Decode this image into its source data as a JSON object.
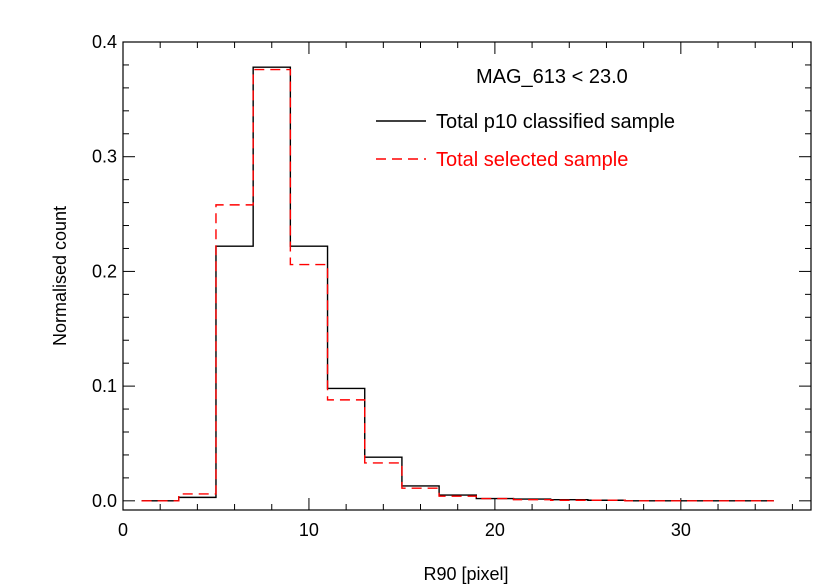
{
  "chart_data": {
    "type": "step-histogram",
    "title": "MAG_613 < 23.0",
    "xlabel": "R90 [pixel]",
    "ylabel": "Normalised count",
    "xlim": [
      0,
      37
    ],
    "ylim": [
      -0.008,
      0.4
    ],
    "xticks": [
      0,
      10,
      20,
      30
    ],
    "yticks": [
      0.0,
      0.1,
      0.2,
      0.3,
      0.4
    ],
    "ytick_labels": [
      "0.0",
      "0.1",
      "0.2",
      "0.3",
      "0.4"
    ],
    "bin_edges": [
      1,
      3,
      5,
      7,
      9,
      11,
      13,
      15,
      17,
      19,
      21,
      23,
      25,
      27,
      29,
      31,
      33,
      35
    ],
    "series": [
      {
        "name": "Total p10 classified sample",
        "style": "solid",
        "color": "#000000",
        "values": [
          0.0,
          0.003,
          0.222,
          0.378,
          0.222,
          0.098,
          0.038,
          0.013,
          0.005,
          0.002,
          0.0015,
          0.001,
          0.0005,
          0.0,
          0.0,
          0.0,
          0.0
        ]
      },
      {
        "name": "Total selected sample",
        "style": "dashed",
        "color": "#ff0000",
        "values": [
          0.0,
          0.006,
          0.258,
          0.376,
          0.206,
          0.088,
          0.033,
          0.011,
          0.004,
          0.002,
          0.001,
          0.0005,
          0.0005,
          0.0,
          0.0,
          0.0,
          0.0
        ]
      }
    ]
  }
}
